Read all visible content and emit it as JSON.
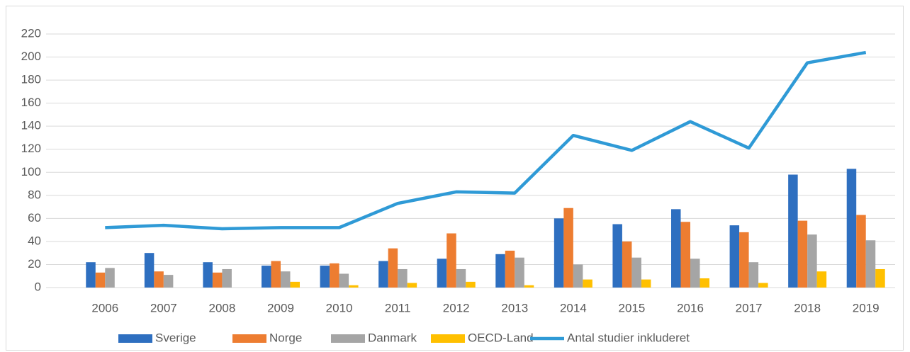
{
  "chart_data": {
    "type": "bar",
    "categories": [
      "2006",
      "2007",
      "2008",
      "2009",
      "2010",
      "2011",
      "2012",
      "2013",
      "2014",
      "2015",
      "2016",
      "2017",
      "2018",
      "2019"
    ],
    "series": [
      {
        "name": "Sverige",
        "color": "#2e6fc0",
        "values": [
          22,
          30,
          22,
          19,
          19,
          23,
          25,
          29,
          60,
          55,
          68,
          54,
          98,
          103
        ]
      },
      {
        "name": "Norge",
        "color": "#ed7d31",
        "values": [
          13,
          14,
          13,
          23,
          21,
          34,
          47,
          32,
          69,
          40,
          57,
          48,
          58,
          63
        ]
      },
      {
        "name": "Danmark",
        "color": "#a5a5a5",
        "values": [
          17,
          11,
          16,
          14,
          12,
          16,
          16,
          26,
          20,
          26,
          25,
          22,
          46,
          41
        ]
      },
      {
        "name": "OECD-Land",
        "color": "#ffc000",
        "values": [
          0,
          0,
          0,
          5,
          2,
          4,
          5,
          2,
          7,
          7,
          8,
          4,
          14,
          16
        ]
      },
      {
        "name": "Antal studier inkluderet",
        "color": "#2f9ad6",
        "type": "line",
        "values": [
          52,
          54,
          51,
          52,
          52,
          73,
          83,
          82,
          132,
          119,
          144,
          121,
          195,
          204
        ]
      }
    ],
    "ylim": [
      0,
      220
    ],
    "yticks": [
      0,
      20,
      40,
      60,
      80,
      100,
      120,
      140,
      160,
      180,
      200,
      220
    ],
    "grid": true,
    "legend": "bottom"
  }
}
